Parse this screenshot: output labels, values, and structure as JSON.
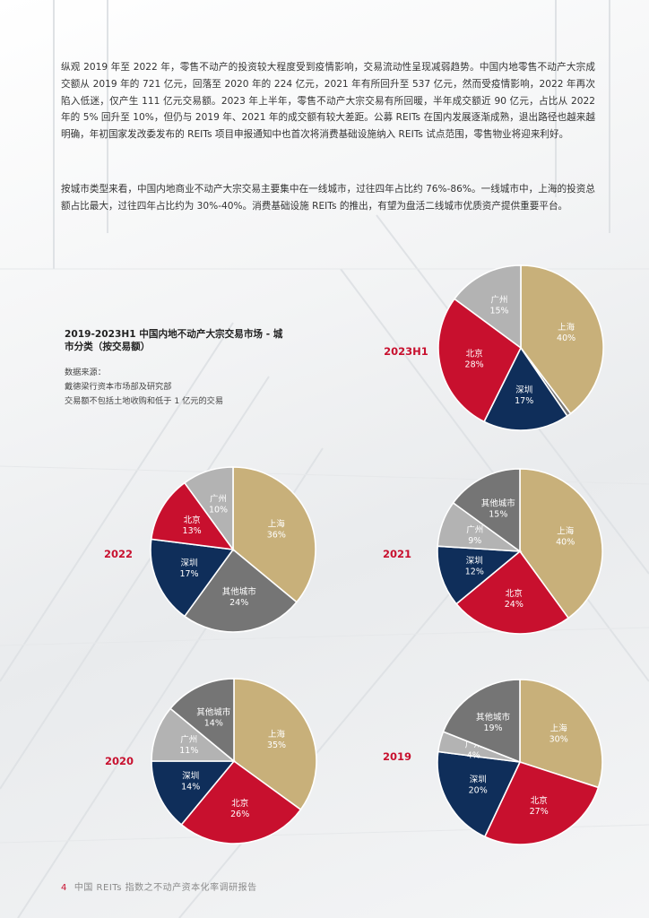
{
  "paragraphs": [
    "纵观 2019 年至 2022 年，零售不动产的投资较大程度受到疫情影响，交易流动性呈现减弱趋势。中国内地零售不动产大宗成交额从 2019 年的 721 亿元，回落至 2020 年的 224 亿元，2021 年有所回升至 537 亿元，然而受疫情影响，2022 年再次陷入低迷，仅产生 111 亿元交易额。2023 年上半年，零售不动产大宗交易有所回暖，半年成交额近 90 亿元，占比从 2022 年的 5% 回升至 10%，但仍与 2019 年、2021 年的成交额有较大差距。公募 REITs 在国内发展逐渐成熟，退出路径也越来越明确，年初国家发改委发布的 REITs 项目申报通知中也首次将消费基础设施纳入 REITs 试点范围，零售物业将迎来利好。",
    "按城市类型来看，中国内地商业不动产大宗交易主要集中在一线城市，过往四年占比约 76%-86%。一线城市中，上海的投资总额占比最大，过往四年占比约为 30%-40%。消费基础设施 REITs 的推出，有望为盘活二线城市优质资产提供重要平台。"
  ],
  "chart_title": "2019-2023H1 中国内地不动产大宗交易市场 - 城市分类（按交易额）",
  "source": {
    "label": "数据来源：",
    "lines": [
      "戴德梁行资本市场部及研究部",
      "交易额不包括土地收购和低于 1 亿元的交易"
    ]
  },
  "colors": {
    "上海": "#c8b07a",
    "北京": "#c8102e",
    "深圳": "#0f2e5a",
    "广州": "#b3b3b3",
    "其他城市": "#757575",
    "year_label": "#c8102e"
  },
  "chart_data": [
    {
      "type": "pie",
      "title": "2023H1",
      "slices": [
        {
          "label": "上海",
          "value": 40
        },
        {
          "label": "其他城市",
          "value": 0.8
        },
        {
          "label": "深圳",
          "value": 17
        },
        {
          "label": "北京",
          "value": 28
        },
        {
          "label": "广州",
          "value": 15
        }
      ]
    },
    {
      "type": "pie",
      "title": "2022",
      "slices": [
        {
          "label": "上海",
          "value": 36
        },
        {
          "label": "其他城市",
          "value": 24
        },
        {
          "label": "深圳",
          "value": 17
        },
        {
          "label": "北京",
          "value": 13
        },
        {
          "label": "广州",
          "value": 10
        }
      ]
    },
    {
      "type": "pie",
      "title": "2021",
      "slices": [
        {
          "label": "上海",
          "value": 40
        },
        {
          "label": "北京",
          "value": 24
        },
        {
          "label": "深圳",
          "value": 12
        },
        {
          "label": "广州",
          "value": 9
        },
        {
          "label": "其他城市",
          "value": 15
        }
      ]
    },
    {
      "type": "pie",
      "title": "2020",
      "slices": [
        {
          "label": "上海",
          "value": 35
        },
        {
          "label": "北京",
          "value": 26
        },
        {
          "label": "深圳",
          "value": 14
        },
        {
          "label": "广州",
          "value": 11
        },
        {
          "label": "其他城市",
          "value": 14
        }
      ]
    },
    {
      "type": "pie",
      "title": "2019",
      "slices": [
        {
          "label": "上海",
          "value": 30
        },
        {
          "label": "北京",
          "value": 27
        },
        {
          "label": "深圳",
          "value": 20
        },
        {
          "label": "广州",
          "value": 4
        },
        {
          "label": "其他城市",
          "value": 19
        }
      ]
    }
  ],
  "footer": {
    "page_number": "4",
    "report_title": "中国 REITs 指数之不动产资本化率调研报告"
  }
}
